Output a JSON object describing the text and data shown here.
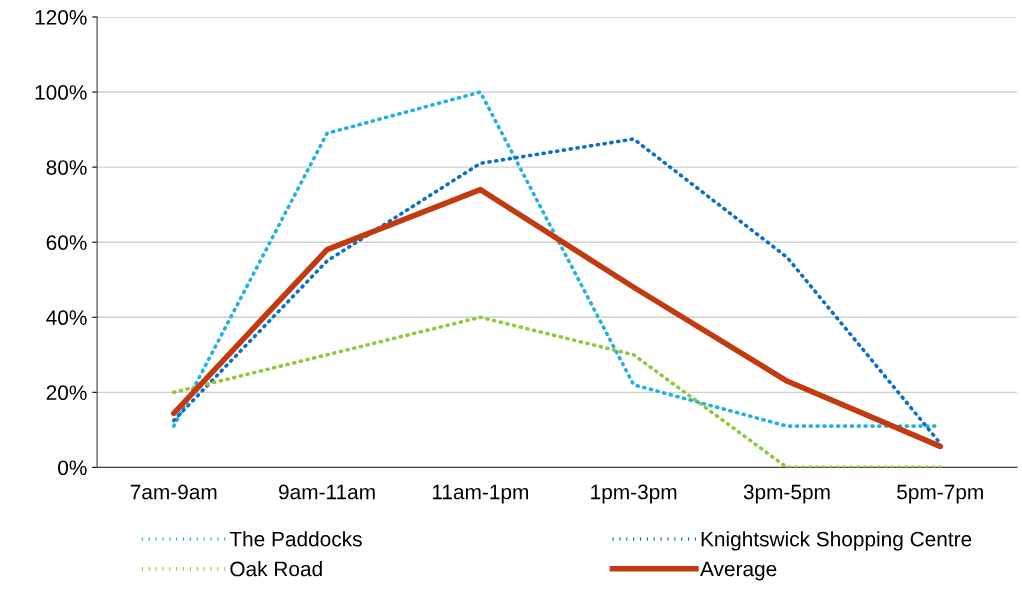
{
  "chart_data": {
    "type": "line",
    "categories": [
      "7am-9am",
      "9am-11am",
      "11am-1pm",
      "1pm-3pm",
      "3pm-5pm",
      "5pm-7pm"
    ],
    "series": [
      {
        "name": "The Paddocks",
        "color": "#1fb0e4",
        "line_style": "dotted",
        "values": [
          11,
          89,
          100,
          22,
          11,
          11
        ]
      },
      {
        "name": "Knightswick Shopping Centre",
        "color": "#0a6fc6",
        "line_style": "dotted",
        "values": [
          12.5,
          55,
          81,
          87.5,
          56,
          6.4
        ]
      },
      {
        "name": "Oak Road",
        "color": "#92c83e",
        "line_style": "dotted",
        "values": [
          20,
          30,
          40,
          30,
          0,
          0
        ]
      },
      {
        "name": "Average",
        "color": "#c23a10",
        "line_style": "solid",
        "values": [
          14.4,
          58,
          74,
          48,
          23,
          5.6
        ]
      }
    ],
    "ylim": [
      0,
      120
    ],
    "yticks": [
      {
        "value": 0,
        "label": "0%"
      },
      {
        "value": 20,
        "label": "20%"
      },
      {
        "value": 40,
        "label": "40%"
      },
      {
        "value": 60,
        "label": "60%"
      },
      {
        "value": 80,
        "label": "80%"
      },
      {
        "value": 100,
        "label": "100%"
      },
      {
        "value": 120,
        "label": "120%"
      }
    ],
    "grid": "y",
    "legend": "bottom",
    "marker": "none"
  }
}
